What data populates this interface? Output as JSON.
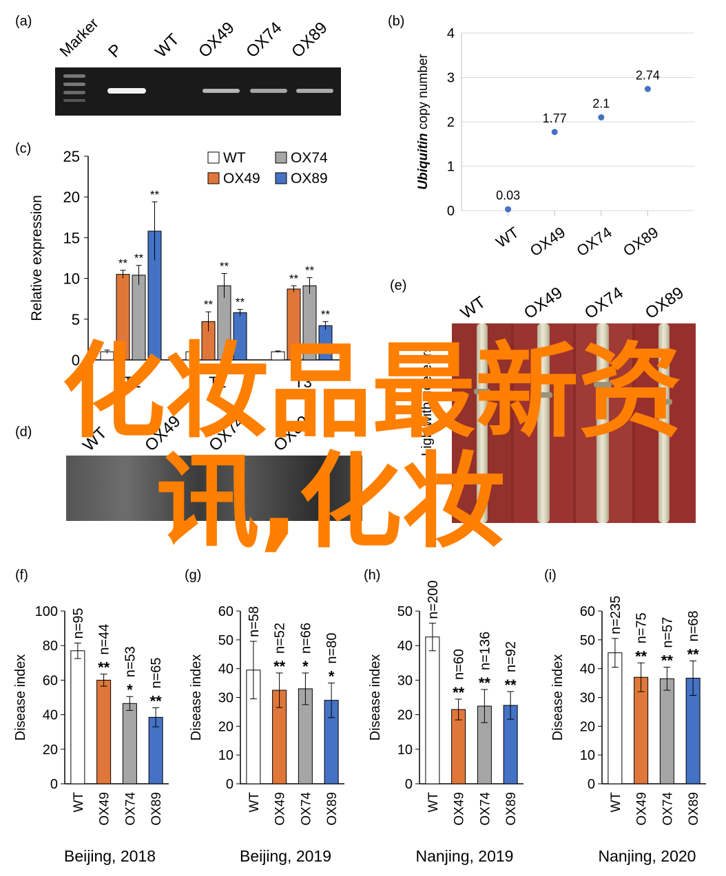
{
  "panels": {
    "a": {
      "label": "(a)",
      "lanes": [
        "Marker",
        "P",
        "WT",
        "OX49",
        "OX74",
        "OX89"
      ]
    },
    "b": {
      "label": "(b)",
      "ylabel_italic": "Ubiquitin",
      "ylabel_rest": " copy number",
      "yticks": [
        "0",
        "1",
        "2",
        "3",
        "4"
      ],
      "xticks": [
        "WT",
        "OX49",
        "OX74",
        "OX89"
      ]
    },
    "c": {
      "label": "(c)",
      "ylabel": "Relative expression",
      "yticks": [
        "0",
        "5",
        "10",
        "15",
        "20",
        "25"
      ],
      "legend": [
        "WT",
        "OX74",
        "OX49",
        "OX89"
      ],
      "xlabels": [
        "T1",
        "T2",
        "T3"
      ]
    },
    "d": {
      "label": "(d)",
      "lanes": [
        "WT",
        "OX49",
        "OX74",
        "OX89"
      ]
    },
    "e": {
      "label": "(e)",
      "lanes": [
        "WT",
        "OX49",
        "OX74",
        "OX89"
      ],
      "side_text": "Ligh with rice ears"
    },
    "f": {
      "label": "(f)",
      "caption": "Beijing, 2018"
    },
    "g": {
      "label": "(g)",
      "caption": "Beijing, 2019"
    },
    "h": {
      "label": "(h)",
      "caption": "Nanjing, 2019"
    },
    "i": {
      "label": "(i)",
      "caption": "Nanjing, 2020"
    },
    "disease_ylabel": "Disease index",
    "disease_xticks": [
      "WT",
      "OX49",
      "OX74",
      "OX89"
    ]
  },
  "watermark": {
    "line1": "化妆品最新资",
    "line2": "讯,化妆",
    "color": "#ff7f00"
  },
  "colors": {
    "WT": "#ffffff",
    "OX49": "#e0773a",
    "OX74": "#a6a6a6",
    "OX89": "#4472c4",
    "scatter": "#4472c4"
  },
  "chart_data": [
    {
      "id": "b",
      "type": "scatter",
      "categories": [
        "WT",
        "OX49",
        "OX74",
        "OX89"
      ],
      "values": [
        0.03,
        1.77,
        2.1,
        2.74
      ],
      "data_labels": [
        "0.03",
        "1.77",
        "2.1",
        "2.74"
      ],
      "ylabel": "Ubiquitin copy number",
      "ylim": [
        0,
        4
      ],
      "grid": true
    },
    {
      "id": "c",
      "type": "bar",
      "categories": [
        "T1",
        "T2",
        "T3"
      ],
      "series": [
        {
          "name": "WT",
          "values": [
            1,
            1,
            1
          ],
          "errors": [
            0.2,
            0.1,
            0.1
          ],
          "sig": [
            "",
            "",
            ""
          ]
        },
        {
          "name": "OX49",
          "values": [
            10.5,
            4.7,
            8.7
          ],
          "errors": [
            0.5,
            1.2,
            0.4
          ],
          "sig": [
            "**",
            "**",
            "**"
          ]
        },
        {
          "name": "OX74",
          "values": [
            10.4,
            9.1,
            9.1
          ],
          "errors": [
            1.2,
            1.5,
            1.0
          ],
          "sig": [
            "**",
            "**",
            "**"
          ]
        },
        {
          "name": "OX89",
          "values": [
            15.8,
            5.8,
            4.2
          ],
          "errors": [
            3.6,
            0.4,
            0.5
          ],
          "sig": [
            "**",
            "**",
            "**"
          ]
        }
      ],
      "ylabel": "Relative expression",
      "ylim": [
        0,
        25
      ],
      "legend": "top-right"
    },
    {
      "id": "f",
      "type": "bar",
      "categories": [
        "WT",
        "OX49",
        "OX74",
        "OX89"
      ],
      "values": [
        77,
        60,
        46.5,
        38.5
      ],
      "errors": [
        4.5,
        3.5,
        4,
        5.5
      ],
      "n": [
        "n=95",
        "n=44",
        "n=53",
        "n=65"
      ],
      "sig": [
        "",
        "**",
        "*",
        "**"
      ],
      "yticks": [
        "0",
        "20",
        "40",
        "60",
        "80",
        "100"
      ],
      "ylim": [
        0,
        100
      ],
      "ylabel": "Disease index"
    },
    {
      "id": "g",
      "type": "bar",
      "categories": [
        "WT",
        "OX49",
        "OX74",
        "OX89"
      ],
      "values": [
        39.5,
        32.5,
        33,
        29
      ],
      "errors": [
        10,
        6,
        5.5,
        6
      ],
      "n": [
        "n=58",
        "n=52",
        "n=66",
        "n=80"
      ],
      "sig": [
        "",
        "**",
        "*",
        "*"
      ],
      "yticks": [
        "0",
        "10",
        "20",
        "30",
        "40",
        "50",
        "60"
      ],
      "ylim": [
        0,
        60
      ],
      "ylabel": "Disease index"
    },
    {
      "id": "h",
      "type": "bar",
      "categories": [
        "WT",
        "OX49",
        "OX74",
        "OX89"
      ],
      "values": [
        42.5,
        21.5,
        22.5,
        22.7
      ],
      "errors": [
        4,
        3,
        4.8,
        4
      ],
      "n": [
        "n=200",
        "n=60",
        "n=136",
        "n=92"
      ],
      "sig": [
        "",
        "**",
        "**",
        "**"
      ],
      "yticks": [
        "0",
        "10",
        "20",
        "30",
        "40",
        "50"
      ],
      "ylim": [
        0,
        50
      ],
      "ylabel": "Disease index"
    },
    {
      "id": "i",
      "type": "bar",
      "categories": [
        "WT",
        "OX49",
        "OX74",
        "OX89"
      ],
      "values": [
        45.5,
        37,
        36.5,
        36.7
      ],
      "errors": [
        5,
        5,
        4,
        6
      ],
      "n": [
        "n=235",
        "n=75",
        "n=57",
        "n=68"
      ],
      "sig": [
        "",
        "**",
        "**",
        "**"
      ],
      "yticks": [
        "0",
        "10",
        "20",
        "30",
        "40",
        "50",
        "60"
      ],
      "ylim": [
        0,
        60
      ],
      "ylabel": "Disease index"
    }
  ]
}
